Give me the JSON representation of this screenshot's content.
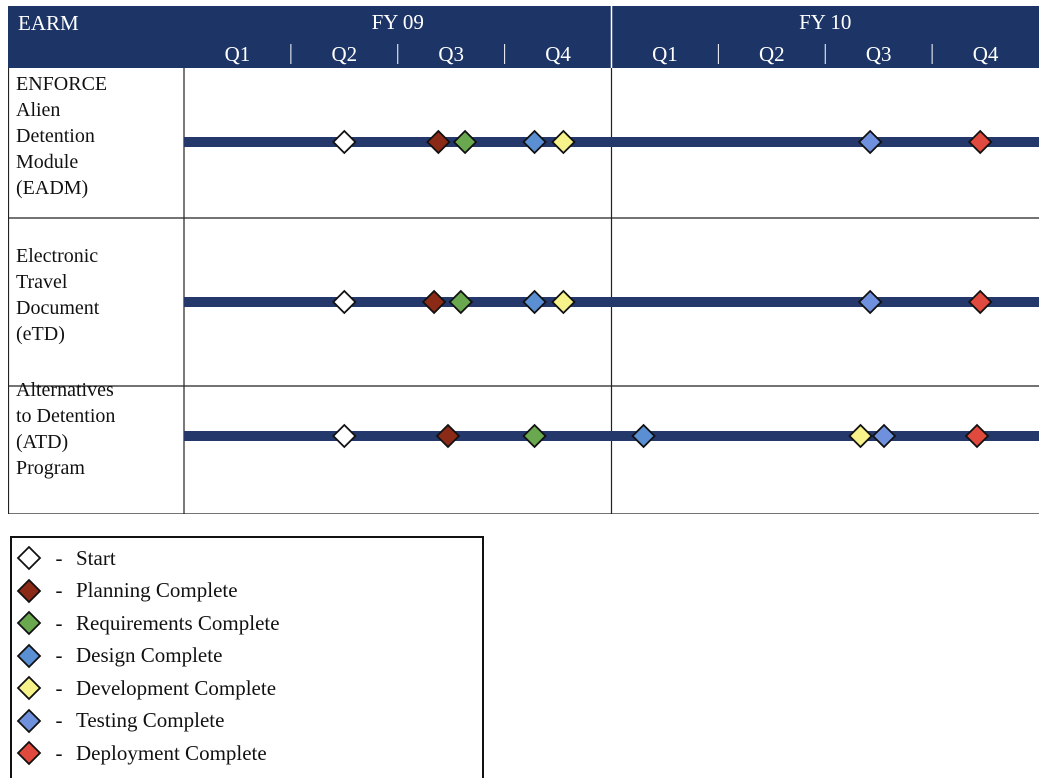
{
  "chart_data": {
    "type": "timeline",
    "corner_label": "EARM",
    "fiscal_years": [
      "FY 09",
      "FY 10"
    ],
    "quarters": [
      {
        "fy": "FY 09",
        "label": "Q1"
      },
      {
        "fy": "FY 09",
        "label": "Q2"
      },
      {
        "fy": "FY 09",
        "label": "Q3"
      },
      {
        "fy": "FY 09",
        "label": "Q4"
      },
      {
        "fy": "FY 10",
        "label": "Q1"
      },
      {
        "fy": "FY 10",
        "label": "Q2"
      },
      {
        "fy": "FY 10",
        "label": "Q3"
      },
      {
        "fy": "FY 10",
        "label": "Q4"
      }
    ],
    "rows": [
      {
        "label_lines": [
          "ENFORCE",
          "Alien",
          "Detention",
          "Module",
          "(EADM)"
        ],
        "milestones": [
          {
            "key": "start",
            "position": 1.5
          },
          {
            "key": "planning",
            "position": 2.38
          },
          {
            "key": "requirements",
            "position": 2.63
          },
          {
            "key": "design",
            "position": 3.28
          },
          {
            "key": "development",
            "position": 3.55
          },
          {
            "key": "testing",
            "position": 6.42
          },
          {
            "key": "deployment",
            "position": 7.45
          }
        ]
      },
      {
        "label_lines": [
          "Electronic",
          "Travel",
          "Document",
          "(eTD)"
        ],
        "milestones": [
          {
            "key": "start",
            "position": 1.5
          },
          {
            "key": "planning",
            "position": 2.34
          },
          {
            "key": "requirements",
            "position": 2.59
          },
          {
            "key": "design",
            "position": 3.28
          },
          {
            "key": "development",
            "position": 3.55
          },
          {
            "key": "testing",
            "position": 6.42
          },
          {
            "key": "deployment",
            "position": 7.45
          }
        ]
      },
      {
        "label_lines": [
          "Alternatives",
          "to Detention",
          "(ATD)",
          "Program"
        ],
        "milestones": [
          {
            "key": "start",
            "position": 1.5
          },
          {
            "key": "planning",
            "position": 2.47
          },
          {
            "key": "requirements",
            "position": 3.28
          },
          {
            "key": "design",
            "position": 4.3
          },
          {
            "key": "development",
            "position": 6.33
          },
          {
            "key": "testing",
            "position": 6.55
          },
          {
            "key": "deployment",
            "position": 7.42
          }
        ]
      }
    ]
  },
  "legend": [
    {
      "key": "start",
      "dash": "-",
      "label": "Start",
      "color": "#ffffff"
    },
    {
      "key": "planning",
      "dash": "-",
      "label": "Planning Complete",
      "color": "#8b2a16"
    },
    {
      "key": "requirements",
      "dash": "-",
      "label": "Requirements Complete",
      "color": "#6aa84f"
    },
    {
      "key": "design",
      "dash": "-",
      "label": "Design Complete",
      "color": "#5b8fd4"
    },
    {
      "key": "development",
      "dash": "-",
      "label": "Development Complete",
      "color": "#f7f28a"
    },
    {
      "key": "testing",
      "dash": "-",
      "label": "Testing Complete",
      "color": "#6f91dd"
    },
    {
      "key": "deployment",
      "dash": "-",
      "label": "Deployment Complete",
      "color": "#e0493d"
    }
  ],
  "colors": {
    "header_bg": "#1d3566",
    "timeline_bar": "#24386c",
    "grid_line": "#222222"
  }
}
